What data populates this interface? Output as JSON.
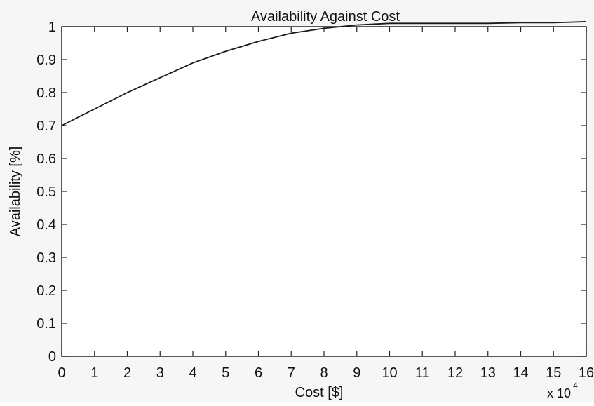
{
  "chart_data": {
    "type": "line",
    "title": "Availability Against Cost",
    "xlabel": "Cost [$]",
    "ylabel": "Availability [%]",
    "x_multiplier_label": {
      "base": "x 10",
      "exponent": "4"
    },
    "xlim": [
      0,
      16
    ],
    "ylim": [
      0,
      1
    ],
    "xticks": [
      "0",
      "1",
      "2",
      "3",
      "4",
      "5",
      "6",
      "7",
      "8",
      "9",
      "10",
      "11",
      "12",
      "13",
      "14",
      "15",
      "16"
    ],
    "yticks": [
      "0",
      "0.1",
      "0.2",
      "0.3",
      "0.4",
      "0.5",
      "0.6",
      "0.7",
      "0.8",
      "0.9",
      "1"
    ],
    "grid": false,
    "series": [
      {
        "x": [
          0,
          1,
          2,
          3,
          4,
          5,
          6,
          7,
          8,
          9,
          10,
          11,
          12,
          13,
          14,
          15,
          16
        ],
        "y": [
          0.7,
          0.75,
          0.8,
          0.845,
          0.89,
          0.925,
          0.955,
          0.98,
          0.995,
          1.005,
          1.01,
          1.01,
          1.01,
          1.01,
          1.012,
          1.012,
          1.015
        ]
      }
    ],
    "line_color": "#1a1a1a"
  }
}
